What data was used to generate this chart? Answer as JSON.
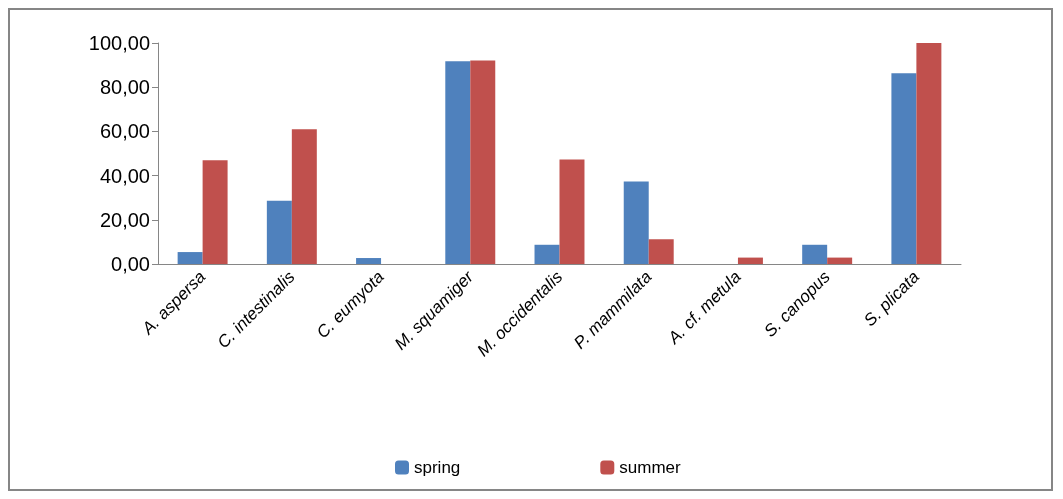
{
  "chart_data": {
    "type": "bar",
    "categories": [
      "A. aspersa",
      "C. intestinalis",
      "C. eumyota",
      "M. squamiger",
      "M. occidentalis",
      "P. mammilata",
      "A. cf. metula",
      "S. canopus",
      "S. plicata"
    ],
    "series": [
      {
        "name": "spring",
        "color": "#4f81bd",
        "values": [
          5.4,
          28.6,
          2.7,
          91.7,
          8.7,
          37.3,
          0,
          8.7,
          86.3
        ]
      },
      {
        "name": "summer",
        "color": "#c0504d",
        "values": [
          46.9,
          61,
          0,
          92.1,
          47.3,
          11.2,
          2.9,
          2.9,
          100
        ]
      }
    ],
    "ylim": [
      0,
      100
    ],
    "yticks": [
      {
        "value": 0,
        "label": "0,00"
      },
      {
        "value": 20,
        "label": "20,00"
      },
      {
        "value": 40,
        "label": "40,00"
      },
      {
        "value": 60,
        "label": "60,00"
      },
      {
        "value": 80,
        "label": "80,00"
      },
      {
        "value": 100,
        "label": "100,00"
      }
    ],
    "grid": false,
    "legend": "bottom"
  }
}
